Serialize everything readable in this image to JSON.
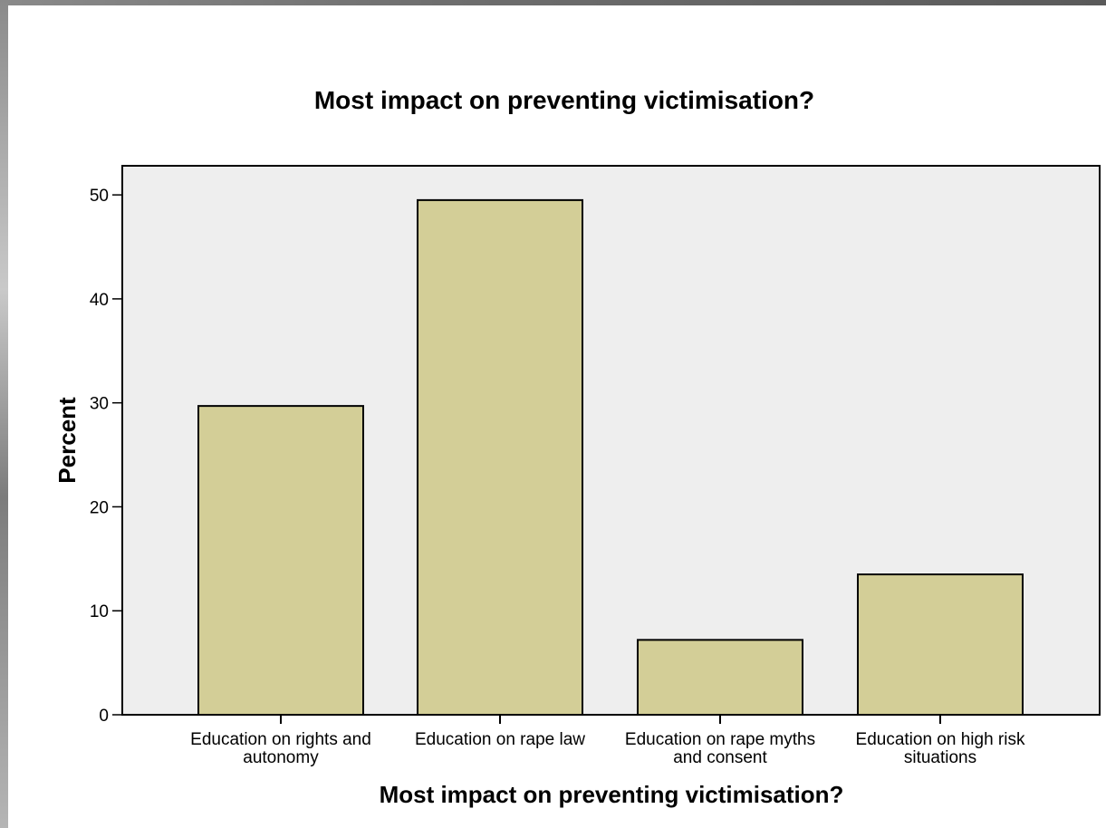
{
  "chart_data": {
    "type": "bar",
    "title": "Most impact on preventing victimisation?",
    "xlabel": "Most impact on preventing victimisation?",
    "ylabel": "Percent",
    "categories": [
      [
        "Education on rights and",
        "autonomy"
      ],
      [
        "Education on rape law"
      ],
      [
        "Education on rape myths",
        "and consent"
      ],
      [
        "Education on high risk",
        "situations"
      ]
    ],
    "values": [
      29.7,
      49.5,
      7.2,
      13.5
    ],
    "yticks": [
      "0",
      "10",
      "20",
      "30",
      "40",
      "50"
    ],
    "ylim": [
      0,
      52.8
    ],
    "grid": false,
    "legend": "none",
    "colors": {
      "bar_fill": "#d3ce97",
      "bar_stroke": "#000000",
      "plot_background": "#eeeeee"
    }
  }
}
